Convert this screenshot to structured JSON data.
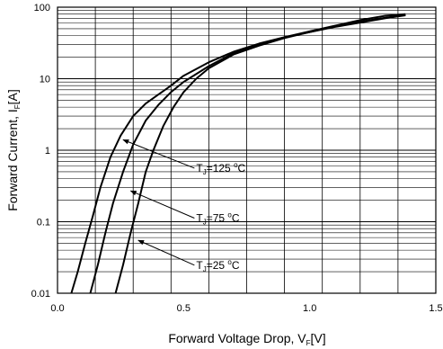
{
  "chart_data": {
    "type": "line",
    "xlabel": {
      "main": "Forward Voltage Drop, V",
      "sub": "F",
      "unit": "[V]"
    },
    "ylabel": {
      "main": "Forward Current, I",
      "sub": "F",
      "unit": "[A]"
    },
    "xlim": [
      0,
      1.5
    ],
    "ylim": [
      0.01,
      100
    ],
    "yscale": "log",
    "grid": true,
    "x_ticks": [
      {
        "value": 0,
        "label": "0.0"
      },
      {
        "value": 0.5,
        "label": "0.5"
      },
      {
        "value": 1.0,
        "label": "1.0"
      },
      {
        "value": 1.5,
        "label": "1.5"
      }
    ],
    "y_ticks": [
      {
        "value": 0.01,
        "label": "0.01"
      },
      {
        "value": 0.1,
        "label": "0.1"
      },
      {
        "value": 1,
        "label": "1"
      },
      {
        "value": 10,
        "label": "10"
      },
      {
        "value": 100,
        "label": "100"
      }
    ],
    "series": [
      {
        "label": {
          "pre": "T",
          "sub": "J",
          "post": "=125 ",
          "deg": "o",
          "unit": "C"
        },
        "points": [
          [
            0.055,
            0.01
          ],
          [
            0.08,
            0.02
          ],
          [
            0.11,
            0.05
          ],
          [
            0.14,
            0.12
          ],
          [
            0.17,
            0.3
          ],
          [
            0.21,
            0.8
          ],
          [
            0.25,
            1.6
          ],
          [
            0.3,
            3.0
          ],
          [
            0.35,
            4.5
          ],
          [
            0.4,
            6.0
          ],
          [
            0.45,
            8.0
          ],
          [
            0.5,
            11.0
          ],
          [
            0.6,
            17.0
          ],
          [
            0.7,
            24.0
          ],
          [
            0.8,
            31.0
          ],
          [
            0.9,
            38.0
          ],
          [
            1.0,
            46.0
          ],
          [
            1.1,
            55.0
          ],
          [
            1.2,
            66.0
          ],
          [
            1.3,
            76.0
          ],
          [
            1.38,
            80.0
          ]
        ]
      },
      {
        "label": {
          "pre": "T",
          "sub": "J",
          "post": "=75 ",
          "deg": "o",
          "unit": "C"
        },
        "points": [
          [
            0.13,
            0.01
          ],
          [
            0.16,
            0.025
          ],
          [
            0.19,
            0.07
          ],
          [
            0.22,
            0.18
          ],
          [
            0.26,
            0.5
          ],
          [
            0.3,
            1.2
          ],
          [
            0.35,
            2.6
          ],
          [
            0.4,
            4.3
          ],
          [
            0.45,
            6.5
          ],
          [
            0.5,
            9.0
          ],
          [
            0.6,
            15.0
          ],
          [
            0.7,
            23.0
          ],
          [
            0.8,
            30.0
          ],
          [
            0.9,
            38.0
          ],
          [
            1.0,
            45.0
          ],
          [
            1.1,
            54.0
          ],
          [
            1.2,
            63.0
          ],
          [
            1.3,
            71.0
          ],
          [
            1.38,
            78.0
          ]
        ]
      },
      {
        "label": {
          "pre": "T",
          "sub": "J",
          "post": "=25 ",
          "deg": "o",
          "unit": "C"
        },
        "points": [
          [
            0.23,
            0.01
          ],
          [
            0.26,
            0.025
          ],
          [
            0.29,
            0.07
          ],
          [
            0.32,
            0.18
          ],
          [
            0.35,
            0.5
          ],
          [
            0.38,
            1.0
          ],
          [
            0.42,
            2.2
          ],
          [
            0.46,
            4.0
          ],
          [
            0.5,
            6.5
          ],
          [
            0.55,
            10.0
          ],
          [
            0.6,
            14.0
          ],
          [
            0.7,
            22.0
          ],
          [
            0.8,
            29.0
          ],
          [
            0.9,
            37.0
          ],
          [
            1.0,
            45.0
          ],
          [
            1.1,
            53.0
          ],
          [
            1.2,
            61.0
          ],
          [
            1.3,
            70.0
          ],
          [
            1.38,
            77.0
          ]
        ]
      }
    ],
    "annotations": [
      {
        "series": 0,
        "arrow_to": [
          0.26,
          1.4
        ],
        "text_at": [
          0.55,
          0.5
        ]
      },
      {
        "series": 1,
        "arrow_to": [
          0.29,
          0.27
        ],
        "text_at": [
          0.55,
          0.1
        ]
      },
      {
        "series": 2,
        "arrow_to": [
          0.32,
          0.055
        ],
        "text_at": [
          0.55,
          0.022
        ]
      }
    ]
  }
}
